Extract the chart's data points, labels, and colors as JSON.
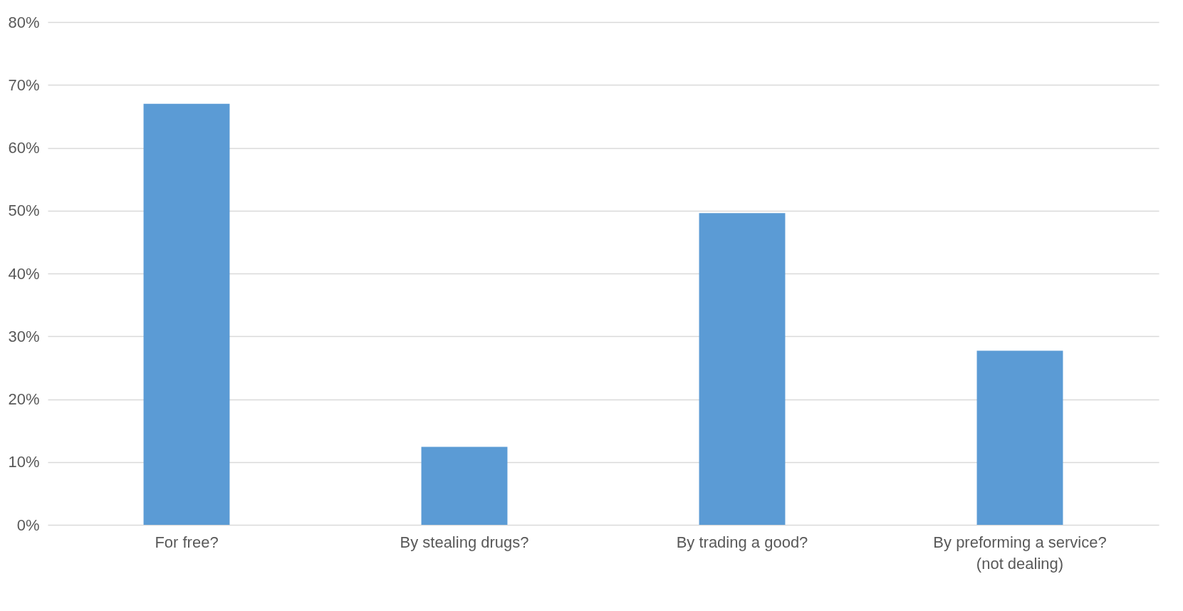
{
  "chart_data": {
    "type": "bar",
    "categories": [
      "For free?",
      "By stealing drugs?",
      "By trading a good?",
      "By preforming a service? (not dealing)"
    ],
    "values": [
      67.0,
      12.4,
      49.6,
      27.7
    ],
    "color": "#5b9bd5",
    "ylim": [
      0,
      80
    ],
    "yticks": [
      {
        "value": 0,
        "label": "0%"
      },
      {
        "value": 10,
        "label": "10%"
      },
      {
        "value": 20,
        "label": "20%"
      },
      {
        "value": 30,
        "label": "30%"
      },
      {
        "value": 40,
        "label": "40%"
      },
      {
        "value": 50,
        "label": "50%"
      },
      {
        "value": 60,
        "label": "60%"
      },
      {
        "value": 70,
        "label": "70%"
      },
      {
        "value": 80,
        "label": "80%"
      }
    ],
    "grid": "y"
  }
}
